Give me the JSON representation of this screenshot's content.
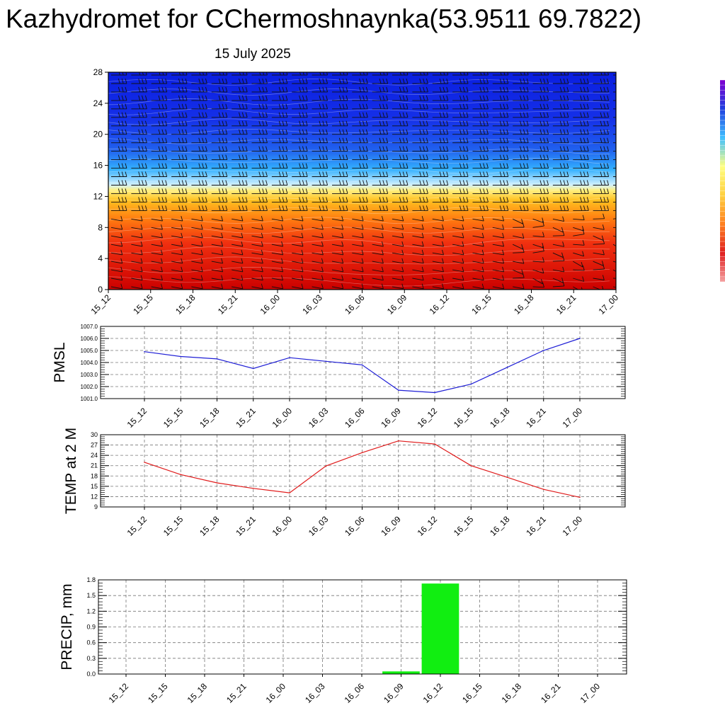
{
  "title": "Kazhydromet for CChermoshnaynka(53.9511 69.7822)",
  "date": "15 July 2025",
  "colors": {
    "pmsl_line": "#1f1fd6",
    "temp_line": "#e01b1b",
    "precip_bar": "#11ee11",
    "grid": "#777777"
  },
  "chart_data": [
    {
      "type": "heatmap",
      "title": "",
      "x": [
        "15_12",
        "15_15",
        "15_18",
        "15_21",
        "16_00",
        "16_03",
        "16_06",
        "16_09",
        "16_12",
        "16_15",
        "16_18",
        "16_21",
        "17_00"
      ],
      "yticks": [
        0,
        4,
        8,
        12,
        16,
        20,
        24,
        28
      ],
      "ylim": [
        0,
        28
      ],
      "colorscale": [
        "#cc0000",
        "#f03010",
        "#ff7a10",
        "#ffc020",
        "#fff080",
        "#d0f0ff",
        "#33b0ff",
        "#2060ee",
        "#1530e8",
        "#0a1ee0"
      ],
      "colorscale_stops": [
        0,
        6,
        9,
        11.5,
        12.8,
        13.5,
        15.5,
        18,
        22,
        28
      ],
      "colorbar_colors": [
        "#f4a0a0",
        "#e02020",
        "#ff8020",
        "#ffd040",
        "#ffff80",
        "#40c0ff",
        "#2040e0",
        "#8000d0"
      ],
      "wind_barbs": true
    },
    {
      "type": "line",
      "ylabel": "PMSL",
      "x": [
        "15_12",
        "15_15",
        "15_18",
        "15_21",
        "16_00",
        "16_03",
        "16_06",
        "16_09",
        "16_12",
        "16_15",
        "16_18",
        "16_21",
        "17_00"
      ],
      "values": [
        1004.9,
        1004.5,
        1004.3,
        1003.5,
        1004.4,
        1004.1,
        1003.8,
        1001.7,
        1001.5,
        1002.2,
        1003.6,
        1005.0,
        1006.0
      ],
      "ylim": [
        1001.0,
        1007.0
      ],
      "yticks": [
        "1001.0",
        "1002.0",
        "1003.0",
        "1004.0",
        "1005.0",
        "1006.0",
        "1007.0"
      ],
      "grid": true
    },
    {
      "type": "line",
      "ylabel": "TEMP at 2 M",
      "x": [
        "15_12",
        "15_15",
        "15_18",
        "15_21",
        "16_00",
        "16_03",
        "16_06",
        "16_09",
        "16_12",
        "16_15",
        "16_18",
        "16_21",
        "17_00"
      ],
      "values": [
        22,
        18.4,
        16,
        14.4,
        13.1,
        20.9,
        24.8,
        28.2,
        27.3,
        21.0,
        17.6,
        14.1,
        11.8
      ],
      "ylim": [
        9,
        30
      ],
      "yticks": [
        "9",
        "12",
        "15",
        "18",
        "21",
        "24",
        "27",
        "30"
      ],
      "grid": true
    },
    {
      "type": "bar",
      "ylabel": "PRECIP, mm",
      "x": [
        "15_12",
        "15_15",
        "15_18",
        "15_21",
        "16_00",
        "16_03",
        "16_06",
        "16_09",
        "16_12",
        "16_15",
        "16_18",
        "16_21",
        "17_00"
      ],
      "values": [
        0,
        0,
        0,
        0,
        0,
        0,
        0,
        0.05,
        1.73,
        0,
        0,
        0,
        0
      ],
      "ylim": [
        0,
        1.8
      ],
      "yticks": [
        "0.0",
        "0.3",
        "0.6",
        "0.9",
        "1.2",
        "1.5",
        "1.8"
      ],
      "grid": true
    }
  ]
}
